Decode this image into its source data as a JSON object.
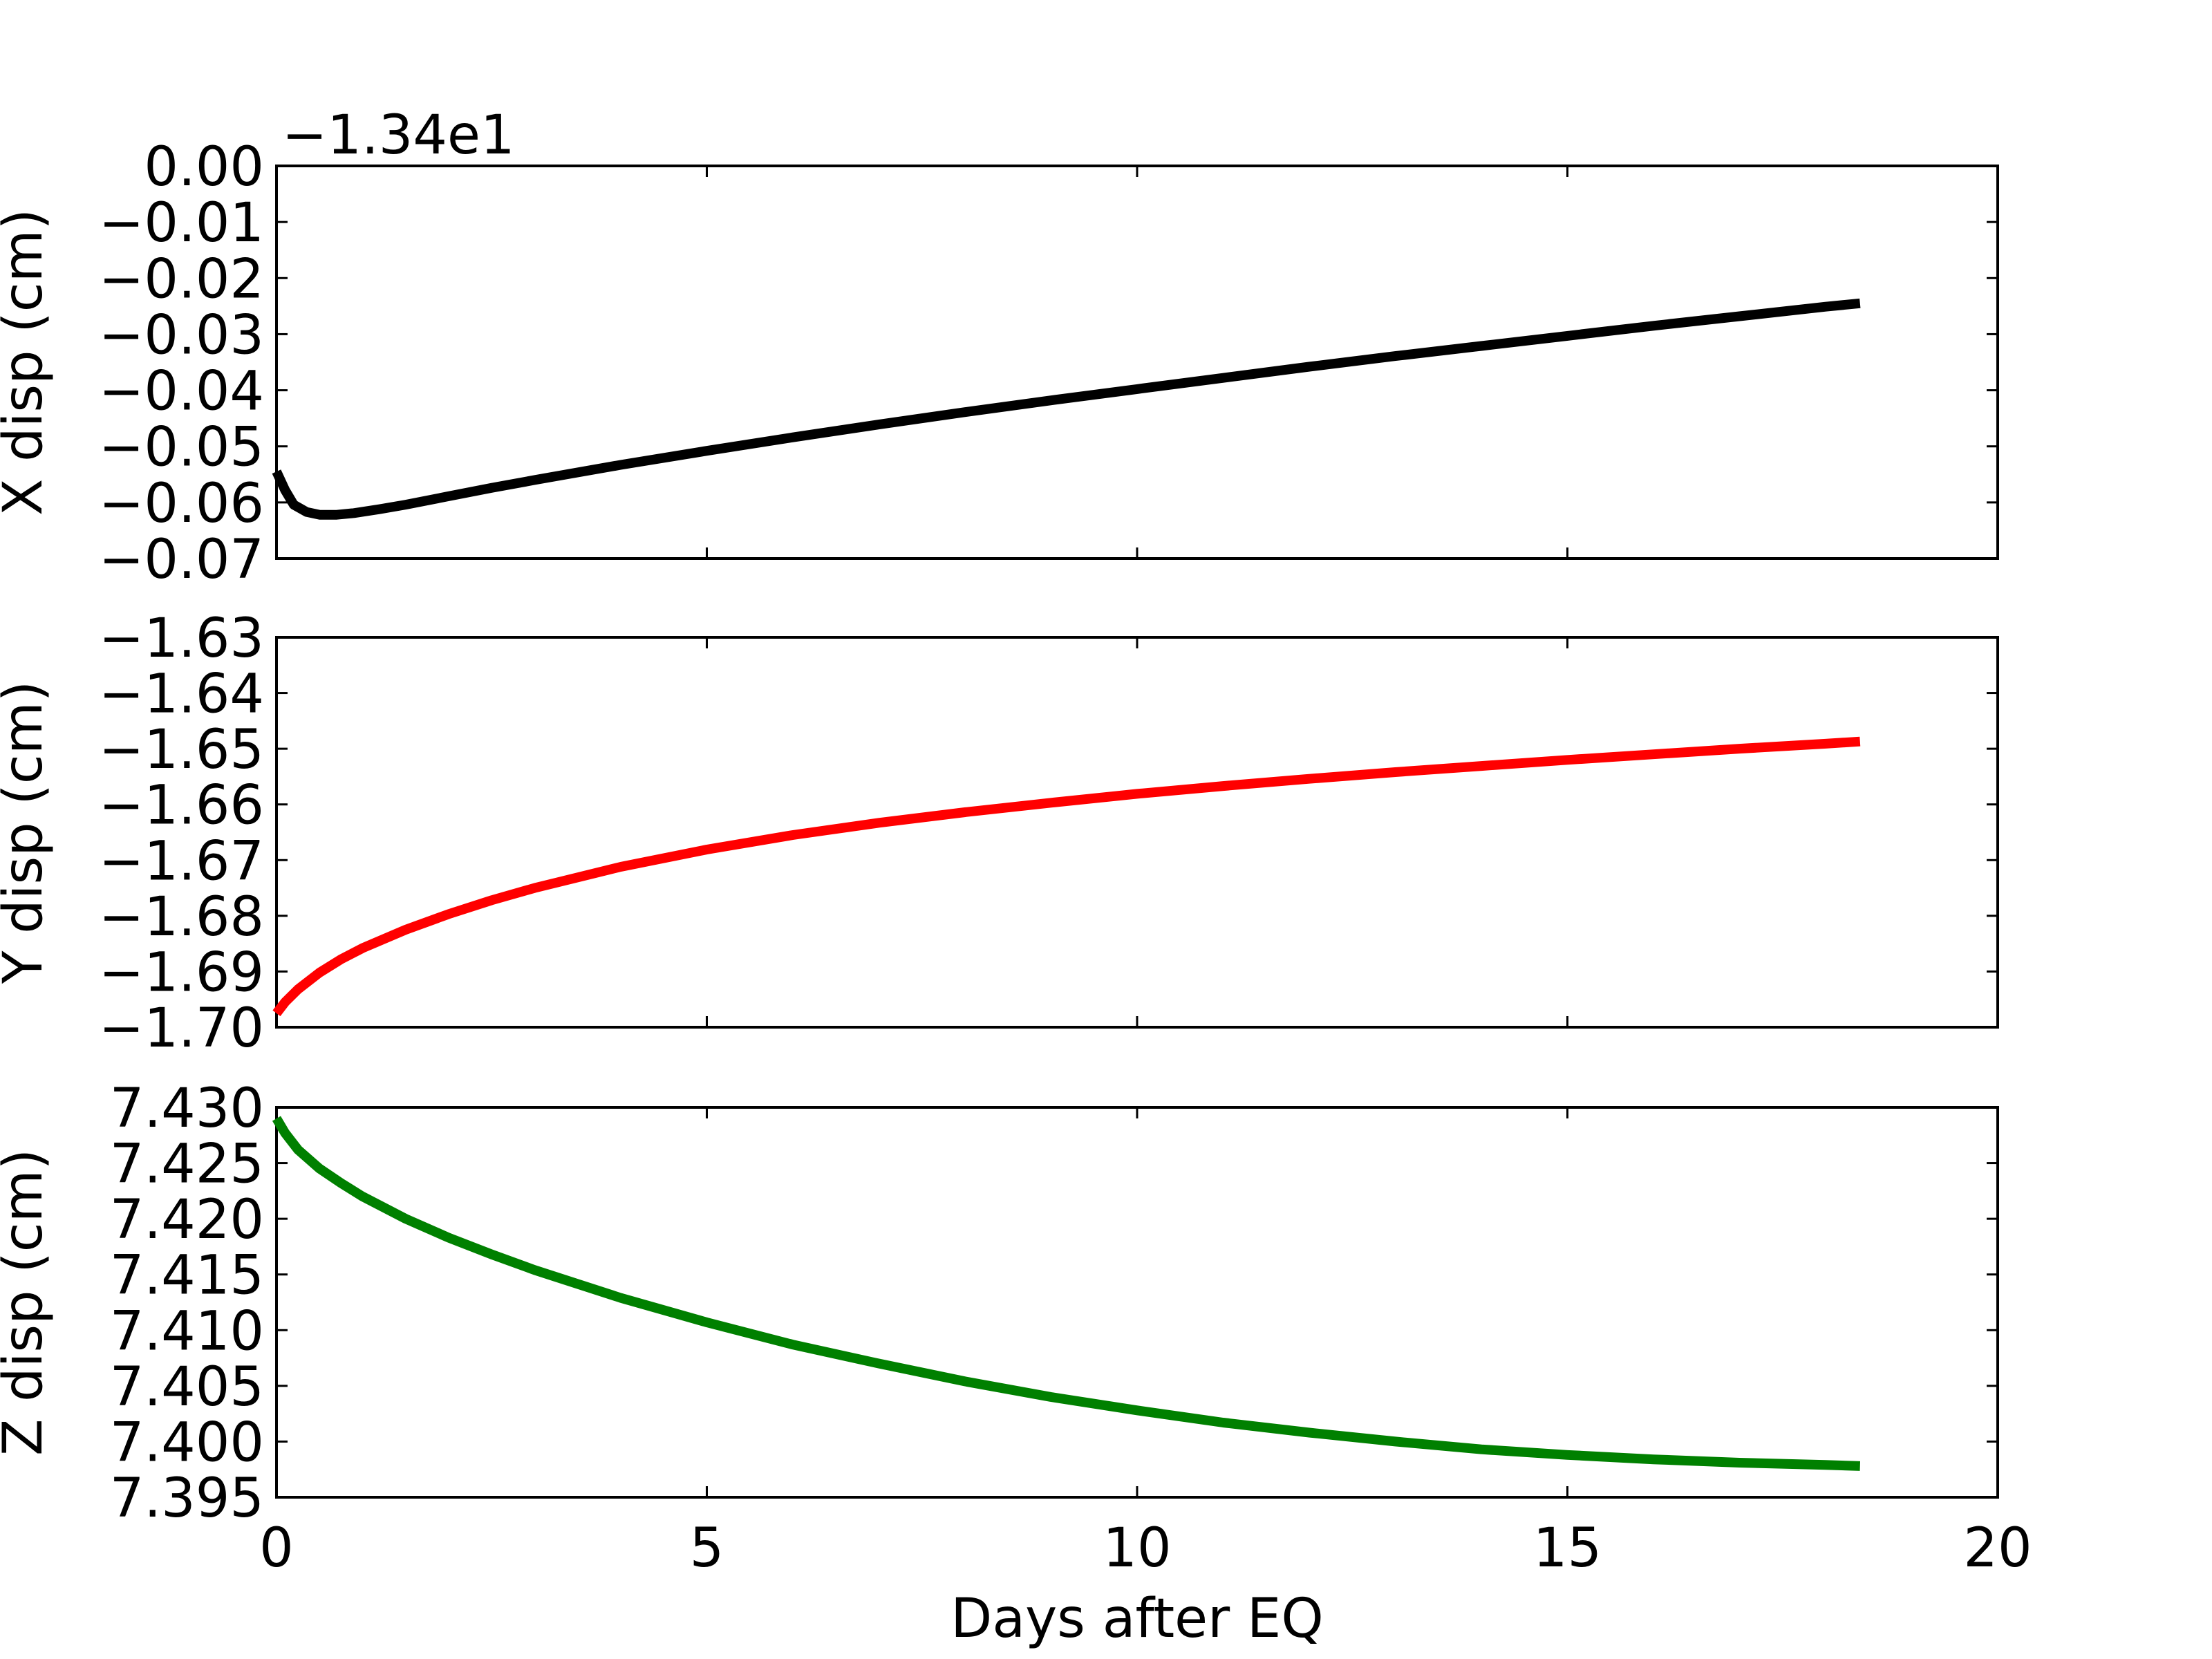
{
  "chart_data": [
    {
      "type": "line",
      "panel": "top",
      "ylabel": "X disp (cm)",
      "offset_text": "−1.34e1",
      "ylim": [
        -0.07,
        0.0
      ],
      "xlim": [
        0,
        20
      ],
      "yticks": [
        "0.00",
        "−0.01",
        "−0.02",
        "−0.03",
        "−0.04",
        "−0.05",
        "−0.06",
        "−0.07"
      ],
      "ytick_values": [
        0.0,
        -0.01,
        -0.02,
        -0.03,
        -0.04,
        -0.05,
        -0.06,
        -0.07
      ],
      "series": [
        {
          "color": "#000000",
          "x": [
            0,
            0.1,
            0.2,
            0.35,
            0.5,
            0.7,
            0.9,
            1.2,
            1.5,
            2,
            2.5,
            3,
            4,
            5,
            6,
            7,
            8,
            9,
            10,
            11,
            12,
            13,
            14,
            15,
            16,
            17,
            18,
            18.4
          ],
          "y": [
            -0.0545,
            -0.0578,
            -0.0604,
            -0.0617,
            -0.0622,
            -0.0622,
            -0.0619,
            -0.0612,
            -0.0604,
            -0.0589,
            -0.0574,
            -0.056,
            -0.0533,
            -0.0508,
            -0.0484,
            -0.0461,
            -0.0439,
            -0.0418,
            -0.0398,
            -0.0378,
            -0.0358,
            -0.0339,
            -0.0321,
            -0.0303,
            -0.0285,
            -0.0268,
            -0.0251,
            -0.0245
          ]
        }
      ]
    },
    {
      "type": "line",
      "panel": "middle",
      "ylabel": "Y disp (cm)",
      "ylim": [
        -1.7,
        -1.63
      ],
      "xlim": [
        0,
        20
      ],
      "yticks": [
        "−1.63",
        "−1.64",
        "−1.65",
        "−1.66",
        "−1.67",
        "−1.68",
        "−1.69",
        "−1.70"
      ],
      "ytick_values": [
        -1.63,
        -1.64,
        -1.65,
        -1.66,
        -1.67,
        -1.68,
        -1.69,
        -1.7
      ],
      "series": [
        {
          "color": "#ff0000",
          "x": [
            0,
            0.1,
            0.25,
            0.5,
            0.75,
            1,
            1.5,
            2,
            2.5,
            3,
            4,
            5,
            6,
            7,
            8,
            9,
            10,
            11,
            12,
            13,
            14,
            15,
            16,
            17,
            18,
            18.4
          ],
          "y": [
            -1.6975,
            -1.6955,
            -1.6932,
            -1.6902,
            -1.6878,
            -1.6858,
            -1.6825,
            -1.6797,
            -1.6772,
            -1.675,
            -1.6712,
            -1.6681,
            -1.6655,
            -1.6633,
            -1.6614,
            -1.6597,
            -1.6581,
            -1.6567,
            -1.6554,
            -1.6542,
            -1.6531,
            -1.652,
            -1.651,
            -1.65,
            -1.6491,
            -1.6487
          ]
        }
      ]
    },
    {
      "type": "line",
      "panel": "bottom",
      "ylabel": "Z disp (cm)",
      "xlabel": "Days after EQ",
      "ylim": [
        7.395,
        7.43
      ],
      "xlim": [
        0,
        20
      ],
      "yticks": [
        "7.430",
        "7.425",
        "7.420",
        "7.415",
        "7.410",
        "7.405",
        "7.400",
        "7.395"
      ],
      "ytick_values": [
        7.43,
        7.425,
        7.42,
        7.415,
        7.41,
        7.405,
        7.4,
        7.395
      ],
      "xticks": [
        "0",
        "5",
        "10",
        "15",
        "20"
      ],
      "xtick_values": [
        0,
        5,
        10,
        15,
        20
      ],
      "series": [
        {
          "color": "#008000",
          "x": [
            0,
            0.1,
            0.25,
            0.5,
            0.75,
            1,
            1.5,
            2,
            2.5,
            3,
            4,
            5,
            6,
            7,
            8,
            9,
            10,
            11,
            12,
            13,
            14,
            15,
            16,
            17,
            18,
            18.4
          ],
          "y": [
            7.429,
            7.4277,
            7.4262,
            7.4245,
            7.4232,
            7.422,
            7.42,
            7.4183,
            7.4168,
            7.4154,
            7.4129,
            7.4107,
            7.4087,
            7.407,
            7.4054,
            7.404,
            7.4028,
            7.4017,
            7.4008,
            7.4,
            7.3993,
            7.3988,
            7.3984,
            7.3981,
            7.3979,
            7.3978
          ]
        }
      ]
    }
  ]
}
